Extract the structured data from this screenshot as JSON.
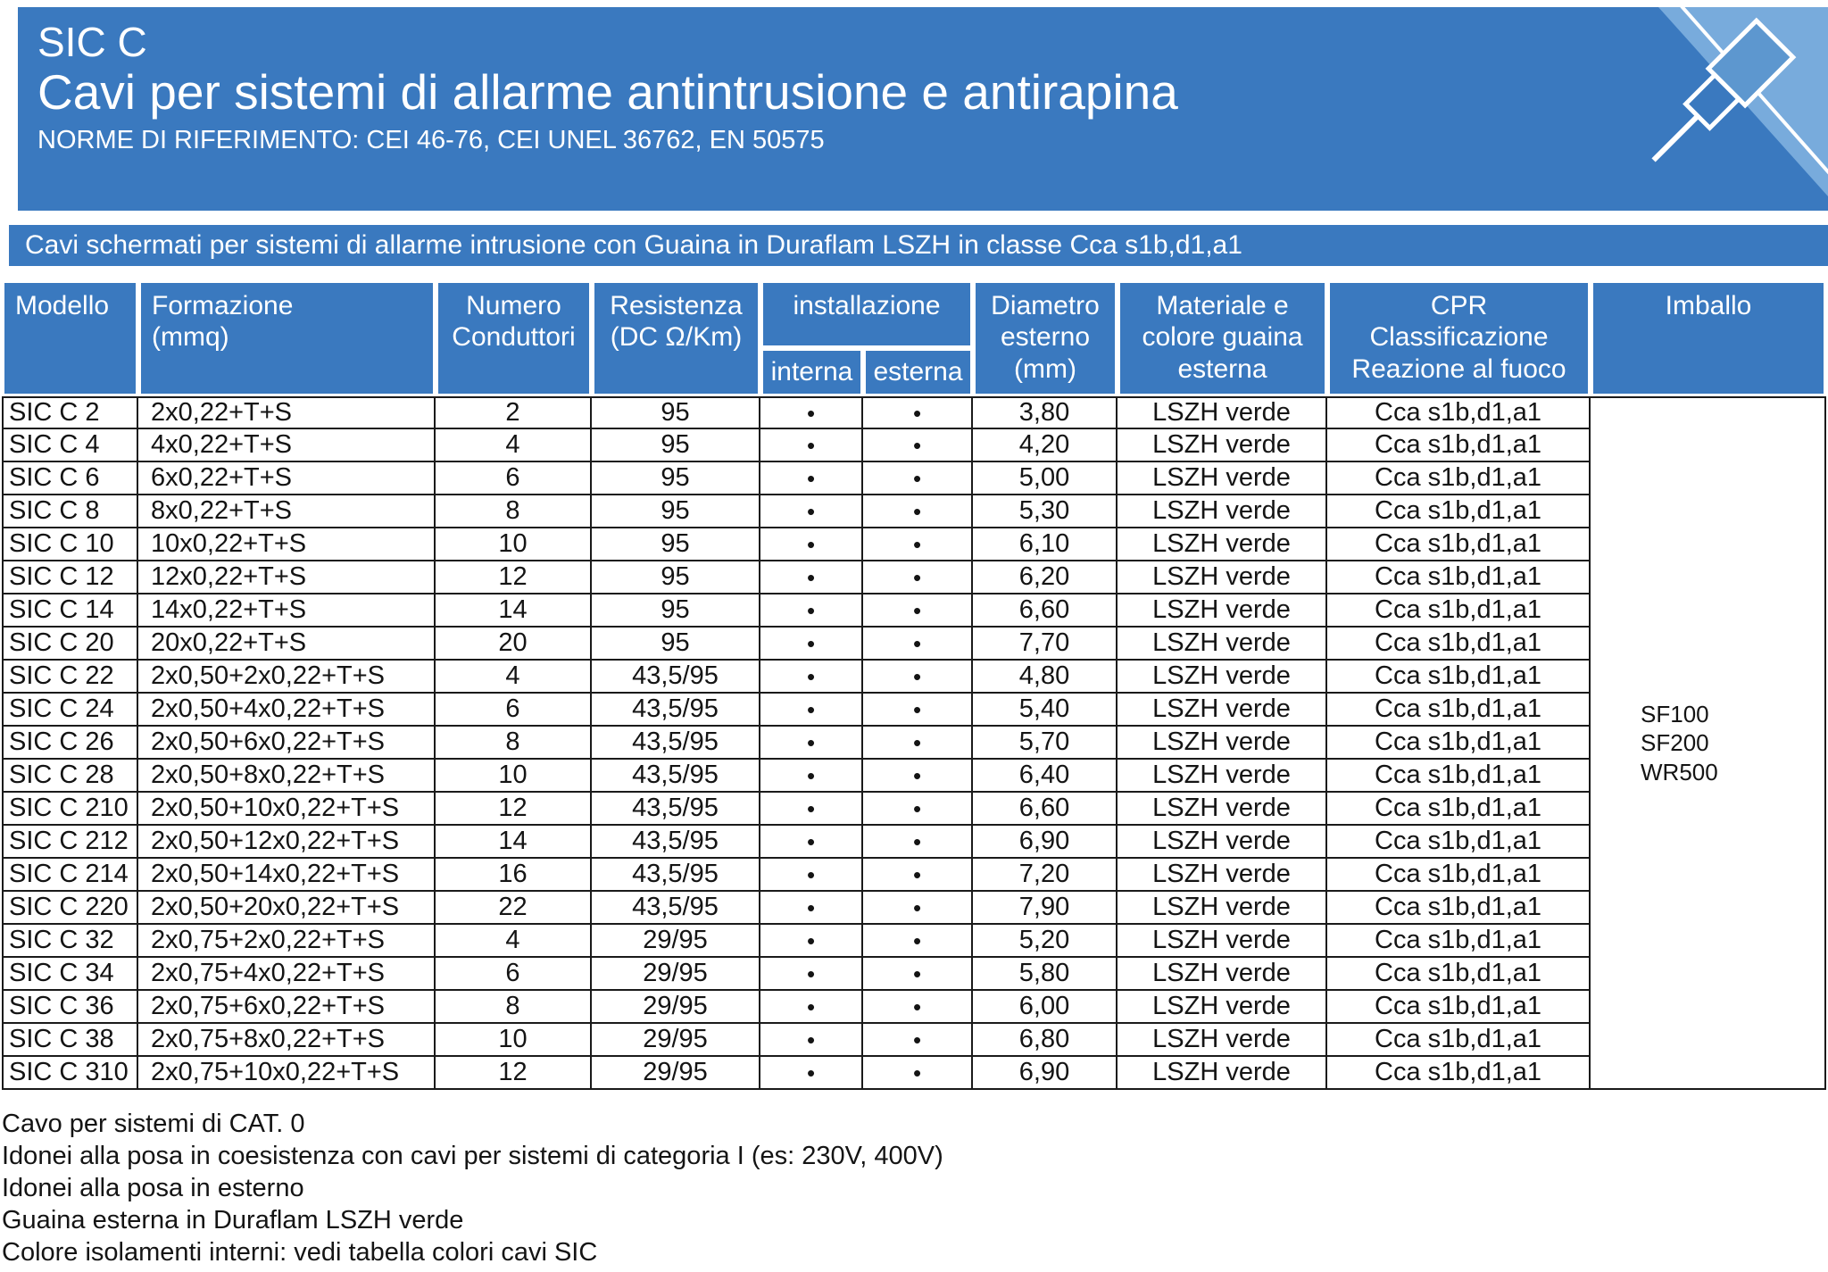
{
  "colors": {
    "primary_blue": "#3a79bf",
    "light_blue": "#78abdc",
    "text_dark": "#141414"
  },
  "header": {
    "product": "SIC C",
    "title": "Cavi per sistemi di allarme antintrusione e antirapina",
    "norms": "NORME DI RIFERIMENTO: CEI 46-76, CEI UNEL 36762, EN 50575"
  },
  "band": {
    "text": "Cavi schermati per sistemi di allarme intrusione con Guaina in Duraflam LSZH in classe Cca s1b,d1,a1"
  },
  "table": {
    "columns": [
      {
        "id": "modello",
        "label": "Modello"
      },
      {
        "id": "formazione",
        "label": "Formazione\n(mmq)"
      },
      {
        "id": "numero",
        "label": "Numero\nConduttori"
      },
      {
        "id": "resistenza",
        "label": "Resistenza\n(DC Ω/Km)"
      },
      {
        "id": "installazione",
        "label": "installazione",
        "children": [
          {
            "id": "interna",
            "label": "interna"
          },
          {
            "id": "esterna",
            "label": "esterna"
          }
        ]
      },
      {
        "id": "diametro",
        "label": "Diametro\nesterno\n(mm)"
      },
      {
        "id": "materiale",
        "label": "Materiale e\ncolore guaina\nesterna"
      },
      {
        "id": "cpr",
        "label": "CPR\nClassificazione\nReazione al fuoco"
      },
      {
        "id": "imballo",
        "label": "Imballo"
      }
    ],
    "imballo": [
      "SF100",
      "SF200",
      "WR500"
    ],
    "rows": [
      {
        "modello": "SIC C 2",
        "formazione": "2x0,22+T+S",
        "numero": "2",
        "resistenza": "95",
        "interna": "•",
        "esterna": "•",
        "diametro": "3,80",
        "materiale": "LSZH verde",
        "cpr": "Cca s1b,d1,a1"
      },
      {
        "modello": "SIC C 4",
        "formazione": "4x0,22+T+S",
        "numero": "4",
        "resistenza": "95",
        "interna": "•",
        "esterna": "•",
        "diametro": "4,20",
        "materiale": "LSZH verde",
        "cpr": "Cca s1b,d1,a1"
      },
      {
        "modello": "SIC C 6",
        "formazione": "6x0,22+T+S",
        "numero": "6",
        "resistenza": "95",
        "interna": "•",
        "esterna": "•",
        "diametro": "5,00",
        "materiale": "LSZH verde",
        "cpr": "Cca s1b,d1,a1"
      },
      {
        "modello": "SIC C 8",
        "formazione": "8x0,22+T+S",
        "numero": "8",
        "resistenza": "95",
        "interna": "•",
        "esterna": "•",
        "diametro": "5,30",
        "materiale": "LSZH verde",
        "cpr": "Cca s1b,d1,a1"
      },
      {
        "modello": "SIC C 10",
        "formazione": "10x0,22+T+S",
        "numero": "10",
        "resistenza": "95",
        "interna": "•",
        "esterna": "•",
        "diametro": "6,10",
        "materiale": "LSZH verde",
        "cpr": "Cca s1b,d1,a1"
      },
      {
        "modello": "SIC C 12",
        "formazione": "12x0,22+T+S",
        "numero": "12",
        "resistenza": "95",
        "interna": "•",
        "esterna": "•",
        "diametro": "6,20",
        "materiale": "LSZH verde",
        "cpr": "Cca s1b,d1,a1"
      },
      {
        "modello": "SIC C 14",
        "formazione": "14x0,22+T+S",
        "numero": "14",
        "resistenza": "95",
        "interna": "•",
        "esterna": "•",
        "diametro": "6,60",
        "materiale": "LSZH verde",
        "cpr": "Cca s1b,d1,a1"
      },
      {
        "modello": "SIC C 20",
        "formazione": "20x0,22+T+S",
        "numero": "20",
        "resistenza": "95",
        "interna": "•",
        "esterna": "•",
        "diametro": "7,70",
        "materiale": "LSZH verde",
        "cpr": "Cca s1b,d1,a1"
      },
      {
        "modello": "SIC C 22",
        "formazione": "2x0,50+2x0,22+T+S",
        "numero": "4",
        "resistenza": "43,5/95",
        "interna": "•",
        "esterna": "•",
        "diametro": "4,80",
        "materiale": "LSZH verde",
        "cpr": "Cca s1b,d1,a1"
      },
      {
        "modello": "SIC C 24",
        "formazione": "2x0,50+4x0,22+T+S",
        "numero": "6",
        "resistenza": "43,5/95",
        "interna": "•",
        "esterna": "•",
        "diametro": "5,40",
        "materiale": "LSZH verde",
        "cpr": "Cca s1b,d1,a1"
      },
      {
        "modello": "SIC C 26",
        "formazione": "2x0,50+6x0,22+T+S",
        "numero": "8",
        "resistenza": "43,5/95",
        "interna": "•",
        "esterna": "•",
        "diametro": "5,70",
        "materiale": "LSZH verde",
        "cpr": "Cca s1b,d1,a1"
      },
      {
        "modello": "SIC C 28",
        "formazione": "2x0,50+8x0,22+T+S",
        "numero": "10",
        "resistenza": "43,5/95",
        "interna": "•",
        "esterna": "•",
        "diametro": "6,40",
        "materiale": "LSZH verde",
        "cpr": "Cca s1b,d1,a1"
      },
      {
        "modello": "SIC C 210",
        "formazione": "2x0,50+10x0,22+T+S",
        "numero": "12",
        "resistenza": "43,5/95",
        "interna": "•",
        "esterna": "•",
        "diametro": "6,60",
        "materiale": "LSZH verde",
        "cpr": "Cca s1b,d1,a1"
      },
      {
        "modello": "SIC C 212",
        "formazione": "2x0,50+12x0,22+T+S",
        "numero": "14",
        "resistenza": "43,5/95",
        "interna": "•",
        "esterna": "•",
        "diametro": "6,90",
        "materiale": "LSZH verde",
        "cpr": "Cca s1b,d1,a1"
      },
      {
        "modello": "SIC C 214",
        "formazione": "2x0,50+14x0,22+T+S",
        "numero": "16",
        "resistenza": "43,5/95",
        "interna": "•",
        "esterna": "•",
        "diametro": "7,20",
        "materiale": "LSZH verde",
        "cpr": "Cca s1b,d1,a1"
      },
      {
        "modello": "SIC C 220",
        "formazione": "2x0,50+20x0,22+T+S",
        "numero": "22",
        "resistenza": "43,5/95",
        "interna": "•",
        "esterna": "•",
        "diametro": "7,90",
        "materiale": "LSZH verde",
        "cpr": "Cca s1b,d1,a1"
      },
      {
        "modello": "SIC C 32",
        "formazione": "2x0,75+2x0,22+T+S",
        "numero": "4",
        "resistenza": "29/95",
        "interna": "•",
        "esterna": "•",
        "diametro": "5,20",
        "materiale": "LSZH verde",
        "cpr": "Cca s1b,d1,a1"
      },
      {
        "modello": "SIC C 34",
        "formazione": "2x0,75+4x0,22+T+S",
        "numero": "6",
        "resistenza": "29/95",
        "interna": "•",
        "esterna": "•",
        "diametro": "5,80",
        "materiale": "LSZH verde",
        "cpr": "Cca s1b,d1,a1"
      },
      {
        "modello": "SIC C 36",
        "formazione": "2x0,75+6x0,22+T+S",
        "numero": "8",
        "resistenza": "29/95",
        "interna": "•",
        "esterna": "•",
        "diametro": "6,00",
        "materiale": "LSZH verde",
        "cpr": "Cca s1b,d1,a1"
      },
      {
        "modello": "SIC C 38",
        "formazione": "2x0,75+8x0,22+T+S",
        "numero": "10",
        "resistenza": "29/95",
        "interna": "•",
        "esterna": "•",
        "diametro": "6,80",
        "materiale": "LSZH verde",
        "cpr": "Cca s1b,d1,a1"
      },
      {
        "modello": "SIC C 310",
        "formazione": "2x0,75+10x0,22+T+S",
        "numero": "12",
        "resistenza": "29/95",
        "interna": "•",
        "esterna": "•",
        "diametro": "6,90",
        "materiale": "LSZH verde",
        "cpr": "Cca s1b,d1,a1"
      }
    ]
  },
  "footnotes": [
    "Cavo per sistemi di CAT. 0",
    "Idonei alla posa in coesistenza con cavi per sistemi di categoria I (es: 230V, 400V)",
    "Idonei alla posa in esterno",
    "Guaina esterna in Duraflam LSZH verde",
    "Colore isolamenti interni: vedi tabella colori cavi SIC"
  ]
}
